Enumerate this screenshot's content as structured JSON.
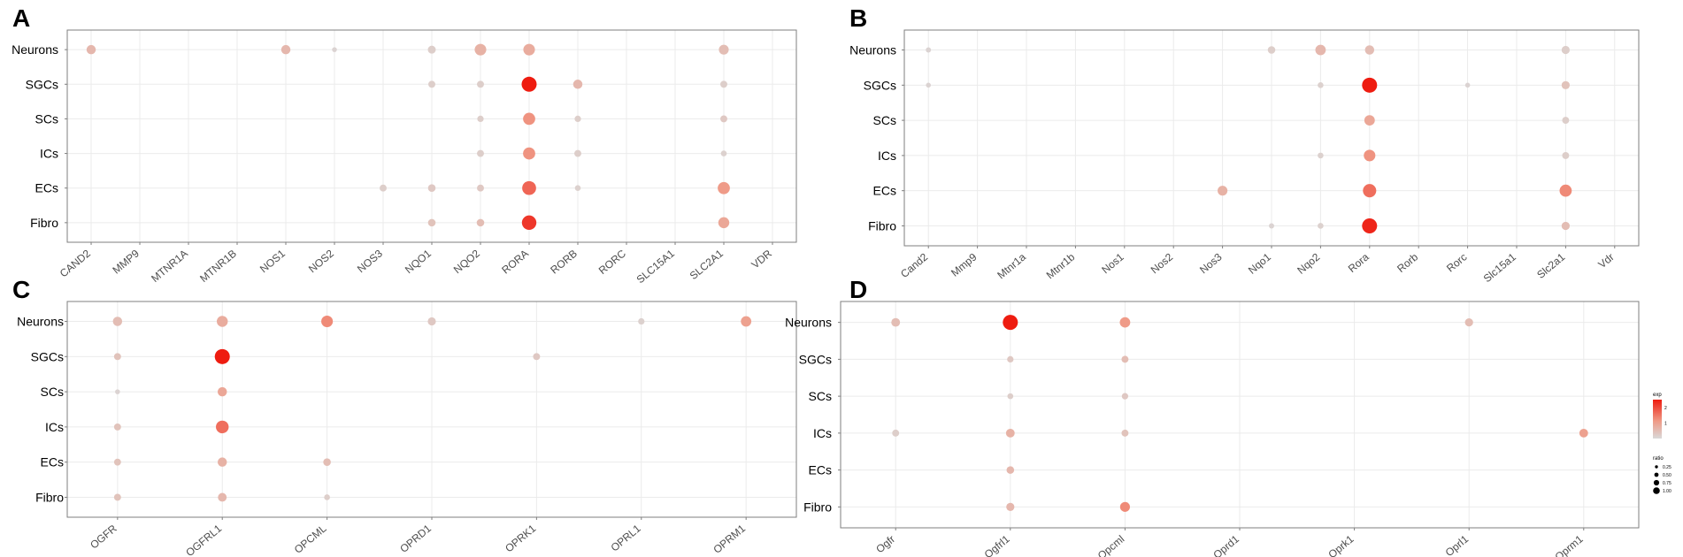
{
  "figure": {
    "description_hidden": false
  },
  "colors": {
    "low": "#d9d9d9",
    "mid": "#ef9a86",
    "high": "#ee1c10",
    "grid": "#ebebeb",
    "border": "#7f7f7f",
    "text": "#000000",
    "tick_text": "#4d4d4d"
  },
  "chart_data": [
    {
      "panel": "A",
      "type": "scatter",
      "title": "",
      "xlabel": "",
      "ylabel": "",
      "categories": [
        "CAND2",
        "MMP9",
        "MTNR1A",
        "MTNR1B",
        "NOS1",
        "NOS2",
        "NOS3",
        "NQO1",
        "NQO2",
        "RORA",
        "RORB",
        "RORC",
        "SLC15A1",
        "SLC2A1",
        "VDR"
      ],
      "rows": [
        "Neurons",
        "SGCs",
        "SCs",
        "ICs",
        "ECs",
        "Fibro"
      ],
      "points": [
        {
          "gene": "CAND2",
          "cell": "Neurons",
          "exp": 0.6,
          "ratio": 0.5
        },
        {
          "gene": "NOS1",
          "cell": "Neurons",
          "exp": 0.6,
          "ratio": 0.5
        },
        {
          "gene": "NOS2",
          "cell": "Neurons",
          "exp": 0.1,
          "ratio": 0.12
        },
        {
          "gene": "NQO1",
          "cell": "Neurons",
          "exp": 0.2,
          "ratio": 0.38
        },
        {
          "gene": "NQO2",
          "cell": "Neurons",
          "exp": 0.7,
          "ratio": 0.7
        },
        {
          "gene": "RORA",
          "cell": "Neurons",
          "exp": 0.8,
          "ratio": 0.7
        },
        {
          "gene": "SLC2A1",
          "cell": "Neurons",
          "exp": 0.5,
          "ratio": 0.55
        },
        {
          "gene": "NQO1",
          "cell": "SGCs",
          "exp": 0.2,
          "ratio": 0.3
        },
        {
          "gene": "NQO2",
          "cell": "SGCs",
          "exp": 0.2,
          "ratio": 0.3
        },
        {
          "gene": "RORA",
          "cell": "SGCs",
          "exp": 2.5,
          "ratio": 1.0
        },
        {
          "gene": "RORB",
          "cell": "SGCs",
          "exp": 0.6,
          "ratio": 0.5
        },
        {
          "gene": "SLC2A1",
          "cell": "SGCs",
          "exp": 0.2,
          "ratio": 0.3
        },
        {
          "gene": "NQO2",
          "cell": "SCs",
          "exp": 0.2,
          "ratio": 0.25
        },
        {
          "gene": "RORA",
          "cell": "SCs",
          "exp": 1.2,
          "ratio": 0.75
        },
        {
          "gene": "RORB",
          "cell": "SCs",
          "exp": 0.2,
          "ratio": 0.25
        },
        {
          "gene": "SLC2A1",
          "cell": "SCs",
          "exp": 0.3,
          "ratio": 0.3
        },
        {
          "gene": "NQO2",
          "cell": "ICs",
          "exp": 0.2,
          "ratio": 0.3
        },
        {
          "gene": "RORA",
          "cell": "ICs",
          "exp": 1.2,
          "ratio": 0.75
        },
        {
          "gene": "RORB",
          "cell": "ICs",
          "exp": 0.2,
          "ratio": 0.3
        },
        {
          "gene": "SLC2A1",
          "cell": "ICs",
          "exp": 0.15,
          "ratio": 0.2
        },
        {
          "gene": "NOS3",
          "cell": "ECs",
          "exp": 0.2,
          "ratio": 0.3
        },
        {
          "gene": "NQO1",
          "cell": "ECs",
          "exp": 0.3,
          "ratio": 0.35
        },
        {
          "gene": "NQO2",
          "cell": "ECs",
          "exp": 0.3,
          "ratio": 0.3
        },
        {
          "gene": "RORA",
          "cell": "ECs",
          "exp": 1.7,
          "ratio": 0.9
        },
        {
          "gene": "RORB",
          "cell": "ECs",
          "exp": 0.15,
          "ratio": 0.2
        },
        {
          "gene": "SLC2A1",
          "cell": "ECs",
          "exp": 1.1,
          "ratio": 0.75
        },
        {
          "gene": "NQO1",
          "cell": "Fibro",
          "exp": 0.4,
          "ratio": 0.35
        },
        {
          "gene": "NQO2",
          "cell": "Fibro",
          "exp": 0.5,
          "ratio": 0.35
        },
        {
          "gene": "RORA",
          "cell": "Fibro",
          "exp": 2.2,
          "ratio": 0.95
        },
        {
          "gene": "SLC2A1",
          "cell": "Fibro",
          "exp": 0.9,
          "ratio": 0.65
        }
      ]
    },
    {
      "panel": "B",
      "type": "scatter",
      "title": "",
      "xlabel": "",
      "ylabel": "",
      "categories": [
        "Cand2",
        "Mmp9",
        "Mtnr1a",
        "Mtnr1b",
        "Nos1",
        "Nos2",
        "Nos3",
        "Nqo1",
        "Nqo2",
        "Rora",
        "Rorb",
        "Rorc",
        "Slc15a1",
        "Slc2a1",
        "Vdr"
      ],
      "rows": [
        "Neurons",
        "SGCs",
        "SCs",
        "ICs",
        "ECs",
        "Fibro"
      ],
      "points": [
        {
          "gene": "Cand2",
          "cell": "Neurons",
          "exp": 0.1,
          "ratio": 0.15
        },
        {
          "gene": "Nqo1",
          "cell": "Neurons",
          "exp": 0.2,
          "ratio": 0.35
        },
        {
          "gene": "Nqo2",
          "cell": "Neurons",
          "exp": 0.6,
          "ratio": 0.6
        },
        {
          "gene": "Rora",
          "cell": "Neurons",
          "exp": 0.5,
          "ratio": 0.5
        },
        {
          "gene": "Slc2a1",
          "cell": "Neurons",
          "exp": 0.2,
          "ratio": 0.4
        },
        {
          "gene": "Cand2",
          "cell": "SGCs",
          "exp": 0.1,
          "ratio": 0.12
        },
        {
          "gene": "Nqo2",
          "cell": "SGCs",
          "exp": 0.15,
          "ratio": 0.2
        },
        {
          "gene": "Rora",
          "cell": "SGCs",
          "exp": 2.5,
          "ratio": 1.0
        },
        {
          "gene": "Rorc",
          "cell": "SGCs",
          "exp": 0.1,
          "ratio": 0.12
        },
        {
          "gene": "Slc2a1",
          "cell": "SGCs",
          "exp": 0.4,
          "ratio": 0.4
        },
        {
          "gene": "Rora",
          "cell": "SCs",
          "exp": 0.9,
          "ratio": 0.6
        },
        {
          "gene": "Slc2a1",
          "cell": "SCs",
          "exp": 0.2,
          "ratio": 0.3
        },
        {
          "gene": "Nqo2",
          "cell": "ICs",
          "exp": 0.15,
          "ratio": 0.2
        },
        {
          "gene": "Rora",
          "cell": "ICs",
          "exp": 1.2,
          "ratio": 0.7
        },
        {
          "gene": "Slc2a1",
          "cell": "ICs",
          "exp": 0.2,
          "ratio": 0.3
        },
        {
          "gene": "Nos3",
          "cell": "ECs",
          "exp": 0.7,
          "ratio": 0.55
        },
        {
          "gene": "Rora",
          "cell": "ECs",
          "exp": 1.6,
          "ratio": 0.85
        },
        {
          "gene": "Slc2a1",
          "cell": "ECs",
          "exp": 1.3,
          "ratio": 0.75
        },
        {
          "gene": "Nqo1",
          "cell": "Fibro",
          "exp": 0.1,
          "ratio": 0.15
        },
        {
          "gene": "Nqo2",
          "cell": "Fibro",
          "exp": 0.15,
          "ratio": 0.2
        },
        {
          "gene": "Rora",
          "cell": "Fibro",
          "exp": 2.4,
          "ratio": 1.0
        },
        {
          "gene": "Slc2a1",
          "cell": "Fibro",
          "exp": 0.5,
          "ratio": 0.4
        }
      ]
    },
    {
      "panel": "C",
      "type": "scatter",
      "title": "",
      "xlabel": "",
      "ylabel": "",
      "categories": [
        "OGFR",
        "OGFRL1",
        "OPCML",
        "OPRD1",
        "OPRK1",
        "OPRL1",
        "OPRM1"
      ],
      "rows": [
        "Neurons",
        "SGCs",
        "SCs",
        "ICs",
        "ECs",
        "Fibro"
      ],
      "points": [
        {
          "gene": "OGFR",
          "cell": "Neurons",
          "exp": 0.5,
          "ratio": 0.5
        },
        {
          "gene": "OGFRL1",
          "cell": "Neurons",
          "exp": 0.8,
          "ratio": 0.65
        },
        {
          "gene": "OPCML",
          "cell": "Neurons",
          "exp": 1.3,
          "ratio": 0.7
        },
        {
          "gene": "OPRD1",
          "cell": "Neurons",
          "exp": 0.3,
          "ratio": 0.4
        },
        {
          "gene": "OPRL1",
          "cell": "Neurons",
          "exp": 0.15,
          "ratio": 0.25
        },
        {
          "gene": "OPRM1",
          "cell": "Neurons",
          "exp": 1.0,
          "ratio": 0.6
        },
        {
          "gene": "OGFR",
          "cell": "SGCs",
          "exp": 0.4,
          "ratio": 0.3
        },
        {
          "gene": "OGFRL1",
          "cell": "SGCs",
          "exp": 2.5,
          "ratio": 1.0
        },
        {
          "gene": "OPRK1",
          "cell": "SGCs",
          "exp": 0.3,
          "ratio": 0.3
        },
        {
          "gene": "OGFR",
          "cell": "SCs",
          "exp": 0.1,
          "ratio": 0.12
        },
        {
          "gene": "OGFRL1",
          "cell": "SCs",
          "exp": 0.9,
          "ratio": 0.5
        },
        {
          "gene": "OGFR",
          "cell": "ICs",
          "exp": 0.4,
          "ratio": 0.3
        },
        {
          "gene": "OGFRL1",
          "cell": "ICs",
          "exp": 1.6,
          "ratio": 0.8
        },
        {
          "gene": "OGFR",
          "cell": "ECs",
          "exp": 0.4,
          "ratio": 0.3
        },
        {
          "gene": "OGFRL1",
          "cell": "ECs",
          "exp": 0.7,
          "ratio": 0.5
        },
        {
          "gene": "OPCML",
          "cell": "ECs",
          "exp": 0.5,
          "ratio": 0.35
        },
        {
          "gene": "OGFR",
          "cell": "Fibro",
          "exp": 0.4,
          "ratio": 0.3
        },
        {
          "gene": "OGFRL1",
          "cell": "Fibro",
          "exp": 0.6,
          "ratio": 0.45
        },
        {
          "gene": "OPCML",
          "cell": "Fibro",
          "exp": 0.2,
          "ratio": 0.2
        }
      ]
    },
    {
      "panel": "D",
      "type": "scatter",
      "title": "",
      "xlabel": "",
      "ylabel": "",
      "categories": [
        "Ogfr",
        "Ogfrl1",
        "Opcml",
        "Oprd1",
        "Oprk1",
        "Oprl1",
        "Oprm1"
      ],
      "rows": [
        "Neurons",
        "SGCs",
        "SCs",
        "ICs",
        "ECs",
        "Fibro"
      ],
      "points": [
        {
          "gene": "Ogfr",
          "cell": "Neurons",
          "exp": 0.5,
          "ratio": 0.45
        },
        {
          "gene": "Ogfrl1",
          "cell": "Neurons",
          "exp": 2.5,
          "ratio": 1.0
        },
        {
          "gene": "Opcml",
          "cell": "Neurons",
          "exp": 1.1,
          "ratio": 0.6
        },
        {
          "gene": "Oprl1",
          "cell": "Neurons",
          "exp": 0.5,
          "ratio": 0.4
        },
        {
          "gene": "Ogfrl1",
          "cell": "SGCs",
          "exp": 0.3,
          "ratio": 0.25
        },
        {
          "gene": "Opcml",
          "cell": "SGCs",
          "exp": 0.5,
          "ratio": 0.3
        },
        {
          "gene": "Ogfrl1",
          "cell": "SCs",
          "exp": 0.2,
          "ratio": 0.2
        },
        {
          "gene": "Opcml",
          "cell": "SCs",
          "exp": 0.3,
          "ratio": 0.25
        },
        {
          "gene": "Ogfr",
          "cell": "ICs",
          "exp": 0.2,
          "ratio": 0.3
        },
        {
          "gene": "Ogfrl1",
          "cell": "ICs",
          "exp": 0.7,
          "ratio": 0.45
        },
        {
          "gene": "Opcml",
          "cell": "ICs",
          "exp": 0.4,
          "ratio": 0.3
        },
        {
          "gene": "Oprm1",
          "cell": "ICs",
          "exp": 1.0,
          "ratio": 0.45
        },
        {
          "gene": "Ogfrl1",
          "cell": "ECs",
          "exp": 0.6,
          "ratio": 0.35
        },
        {
          "gene": "Ogfrl1",
          "cell": "Fibro",
          "exp": 0.6,
          "ratio": 0.4
        },
        {
          "gene": "Opcml",
          "cell": "Fibro",
          "exp": 1.3,
          "ratio": 0.55
        }
      ]
    }
  ],
  "legend": {
    "placement": "right of panel D",
    "color_title": "exp",
    "color_ticks": [
      "2",
      "1"
    ],
    "color_range": [
      0,
      2.5
    ],
    "size_title": "ratio",
    "size_entries": [
      "0.25",
      "0.50",
      "0.75",
      "1.00"
    ],
    "size_values": [
      0.25,
      0.5,
      0.75,
      1.0
    ]
  }
}
